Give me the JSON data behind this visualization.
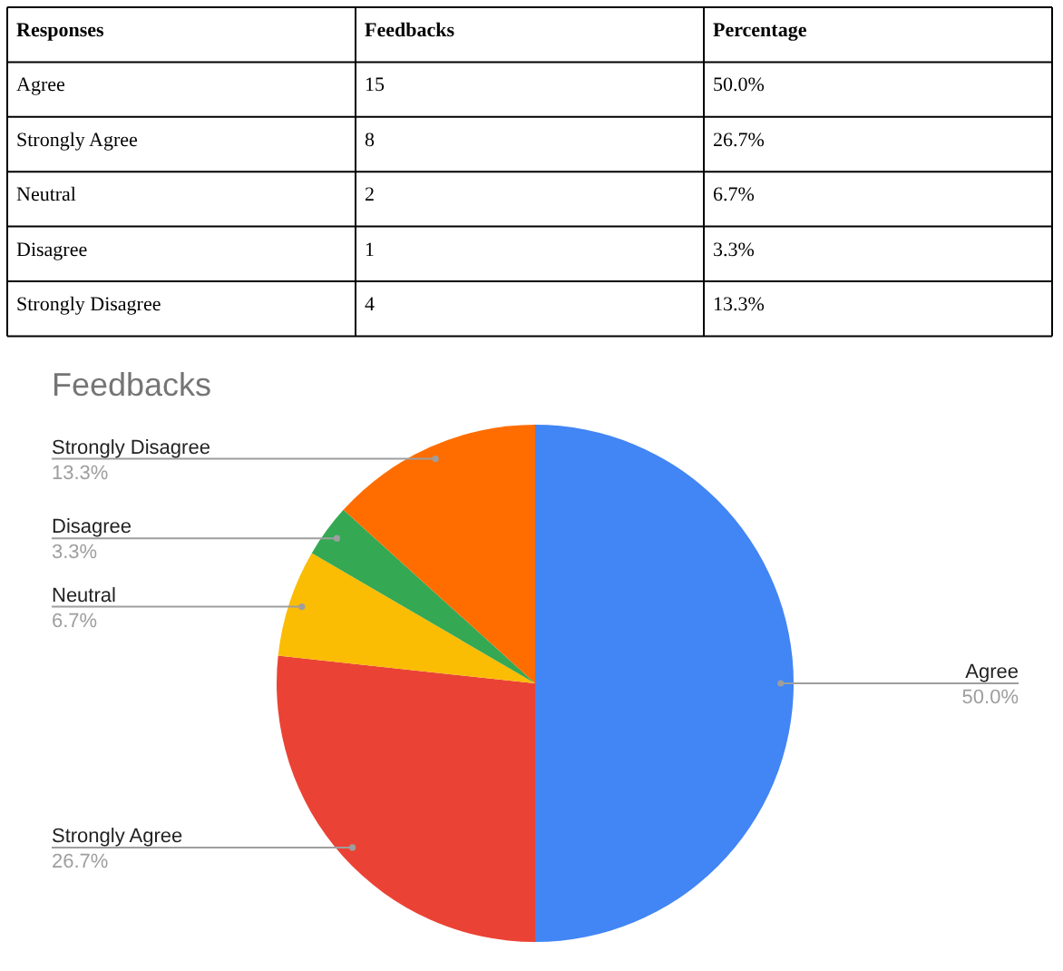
{
  "chart_data": [
    {
      "type": "other",
      "annotations": [
        "Responses"
      ],
      "categories": [
        "Agree",
        "Strongly Agree",
        "Neutral",
        "Disagree",
        "Strongly Disagree"
      ],
      "data_labels": true,
      "series": [
        {
          "name": "Feedbacks",
          "values": [
            15,
            8,
            2,
            1,
            4
          ]
        },
        {
          "name": "Percentage",
          "values": [
            50.0,
            26.7,
            6.7,
            3.3,
            13.3
          ],
          "value_labels": [
            "50.0%",
            "26.7%",
            "6.7%",
            "3.3%",
            "13.3%"
          ]
        }
      ]
    },
    {
      "type": "pie",
      "title": "Feedbacks",
      "categories": [
        "Agree",
        "Strongly Agree",
        "Neutral",
        "Disagree",
        "Strongly Disagree"
      ],
      "values": [
        50.0,
        26.7,
        6.7,
        3.3,
        13.3
      ],
      "colors": [
        "#4285f4",
        "#ea4335",
        "#fbbc04",
        "#34a853",
        "#ff6d01"
      ],
      "value_labels": [
        "50.0%",
        "26.7%",
        "6.7%",
        "3.3%",
        "13.3%"
      ]
    }
  ]
}
